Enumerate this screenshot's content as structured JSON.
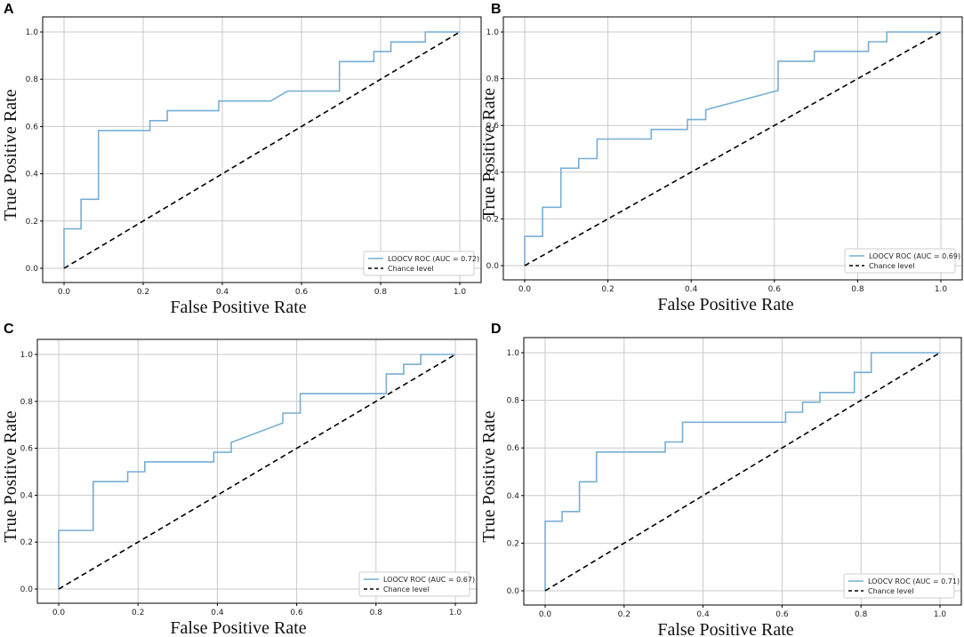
{
  "figure": {
    "xlabel": "False Positive Rate",
    "ylabel": "True Positive Rate",
    "ticks": [
      "0.0",
      "0.2",
      "0.4",
      "0.6",
      "0.8",
      "1.0"
    ],
    "colors": {
      "roc": "#77aed4",
      "chance": "#000000",
      "grid": "#c9c9c9",
      "axes": "#000000"
    }
  },
  "chart_data": [
    {
      "panel": "A",
      "type": "line",
      "xlabel": "False Positive Rate",
      "ylabel": "True Positive Rate",
      "xlim": [
        0,
        1
      ],
      "ylim": [
        0,
        1
      ],
      "grid": true,
      "legend_position": "bottom-right",
      "series": [
        {
          "name": "LOOCV ROC (AUC = 0.72)",
          "style": "solid",
          "x": [
            0,
            0,
            0,
            0.043,
            0.043,
            0.087,
            0.087,
            0.217,
            0.217,
            0.261,
            0.261,
            0.391,
            0.391,
            0.522,
            0.565,
            0.696,
            0.696,
            0.783,
            0.783,
            0.826,
            0.826,
            0.913,
            0.913,
            1
          ],
          "y": [
            0,
            0.167,
            0.167,
            0.167,
            0.292,
            0.292,
            0.583,
            0.583,
            0.625,
            0.625,
            0.667,
            0.667,
            0.708,
            0.708,
            0.75,
            0.75,
            0.875,
            0.875,
            0.917,
            0.917,
            0.958,
            0.958,
            1,
            1
          ]
        },
        {
          "name": "Chance level",
          "style": "dashed",
          "x": [
            0,
            1
          ],
          "y": [
            0,
            1
          ]
        }
      ]
    },
    {
      "panel": "B",
      "type": "line",
      "xlabel": "False Positive Rate",
      "ylabel": "True Positive Rate",
      "xlim": [
        0,
        1
      ],
      "ylim": [
        0,
        1
      ],
      "grid": true,
      "legend_position": "bottom-right",
      "series": [
        {
          "name": "LOOCV ROC (AUC = 0.69)",
          "style": "solid",
          "x": [
            0,
            0,
            0.043,
            0.043,
            0.087,
            0.087,
            0.13,
            0.13,
            0.174,
            0.174,
            0.304,
            0.304,
            0.391,
            0.391,
            0.435,
            0.435,
            0.609,
            0.609,
            0.696,
            0.696,
            0.826,
            0.826,
            0.87,
            0.87,
            1
          ],
          "y": [
            0,
            0.125,
            0.125,
            0.25,
            0.25,
            0.417,
            0.417,
            0.458,
            0.458,
            0.542,
            0.542,
            0.583,
            0.583,
            0.625,
            0.625,
            0.667,
            0.75,
            0.875,
            0.875,
            0.917,
            0.917,
            0.958,
            0.958,
            1,
            1
          ]
        },
        {
          "name": "Chance level",
          "style": "dashed",
          "x": [
            0,
            1
          ],
          "y": [
            0,
            1
          ]
        }
      ]
    },
    {
      "panel": "C",
      "type": "line",
      "xlabel": "False Positive Rate",
      "ylabel": "True Positive Rate",
      "xlim": [
        0,
        1
      ],
      "ylim": [
        0,
        1
      ],
      "grid": true,
      "legend_position": "bottom-right",
      "series": [
        {
          "name": "LOOCV ROC (AUC = 0.67)",
          "style": "solid",
          "x": [
            0,
            0,
            0.087,
            0.087,
            0.174,
            0.174,
            0.217,
            0.217,
            0.391,
            0.391,
            0.435,
            0.435,
            0.565,
            0.565,
            0.609,
            0.609,
            0.826,
            0.826,
            0.87,
            0.87,
            0.913,
            0.913,
            1
          ],
          "y": [
            0,
            0.25,
            0.25,
            0.458,
            0.458,
            0.5,
            0.5,
            0.542,
            0.542,
            0.583,
            0.583,
            0.625,
            0.708,
            0.75,
            0.75,
            0.833,
            0.833,
            0.917,
            0.917,
            0.958,
            0.958,
            1,
            1
          ]
        },
        {
          "name": "Chance level",
          "style": "dashed",
          "x": [
            0,
            1
          ],
          "y": [
            0,
            1
          ]
        }
      ]
    },
    {
      "panel": "D",
      "type": "line",
      "xlabel": "False Positive Rate",
      "ylabel": "True Positive Rate",
      "xlim": [
        0,
        1
      ],
      "ylim": [
        0,
        1
      ],
      "grid": true,
      "legend_position": "bottom-right",
      "series": [
        {
          "name": "LOOCV ROC (AUC = 0.71)",
          "style": "solid",
          "x": [
            0,
            0,
            0.043,
            0.043,
            0.087,
            0.087,
            0.13,
            0.13,
            0.304,
            0.304,
            0.348,
            0.348,
            0.609,
            0.609,
            0.652,
            0.652,
            0.696,
            0.696,
            0.783,
            0.783,
            0.826,
            0.826,
            1
          ],
          "y": [
            0,
            0.292,
            0.292,
            0.333,
            0.333,
            0.458,
            0.458,
            0.583,
            0.583,
            0.625,
            0.625,
            0.708,
            0.708,
            0.75,
            0.75,
            0.792,
            0.792,
            0.833,
            0.833,
            0.917,
            0.917,
            1,
            1
          ]
        },
        {
          "name": "Chance level",
          "style": "dashed",
          "x": [
            0,
            1
          ],
          "y": [
            0,
            1
          ]
        }
      ]
    }
  ]
}
